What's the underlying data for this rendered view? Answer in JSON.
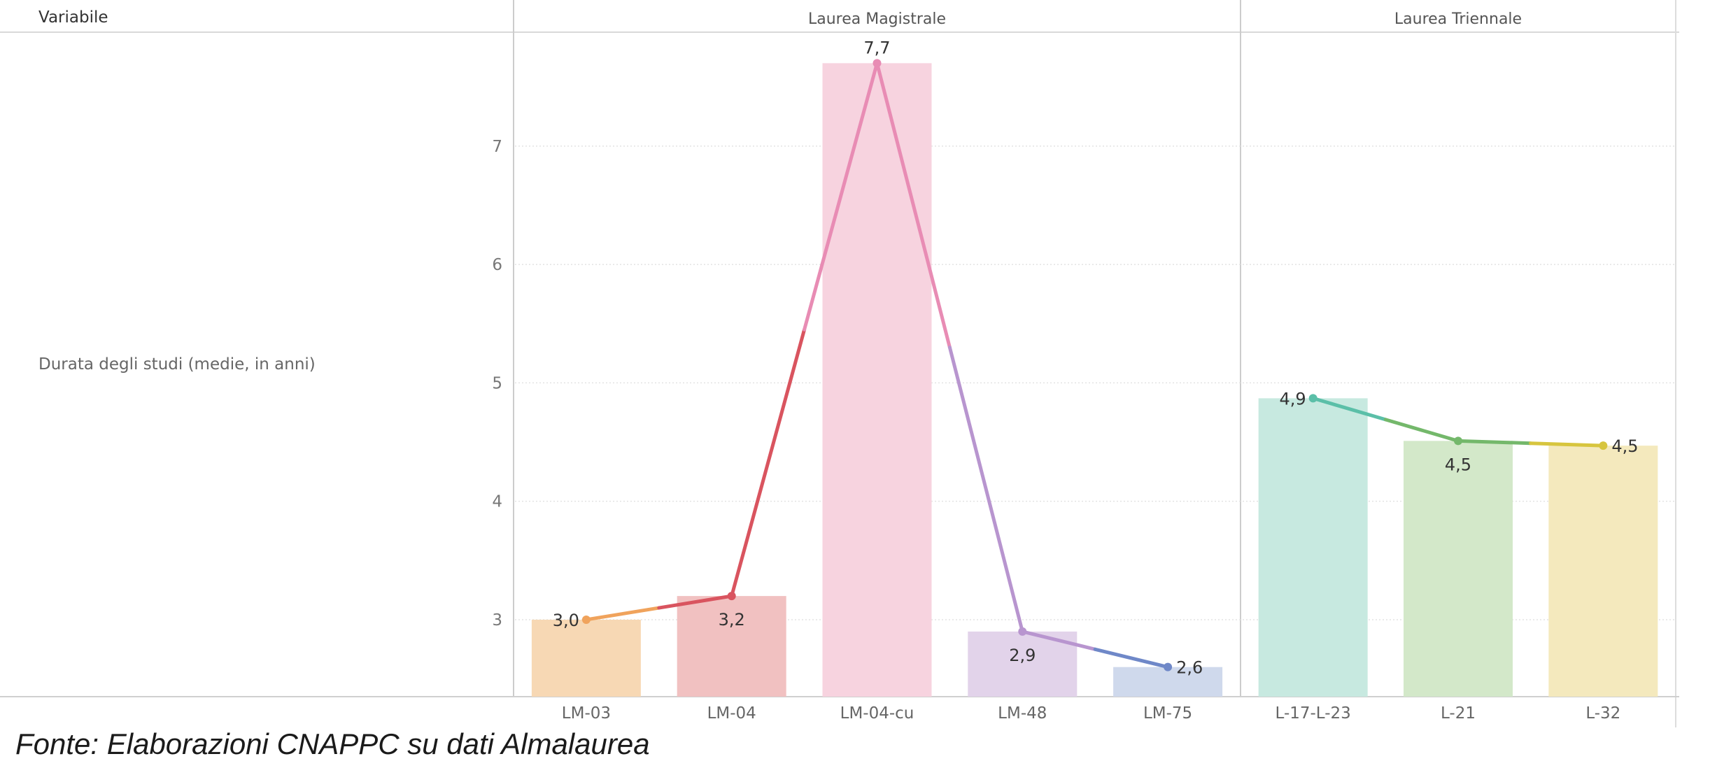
{
  "header": {
    "variable_label": "Variabile",
    "row_label": "Durata degli studi (medie, in anni)"
  },
  "source_note": "Fonte: Elaborazioni CNAPPC su dati Almalaurea",
  "chart_data": {
    "type": "bar",
    "ylim": [
      2.35,
      7.95
    ],
    "yticks": [
      3,
      4,
      5,
      6,
      7
    ],
    "grid": true,
    "panels": [
      {
        "name": "Laurea Magistrale",
        "categories": [
          "LM-03",
          "LM-04",
          "LM-04-cu",
          "LM-48",
          "LM-75"
        ],
        "values": [
          3.0,
          3.2,
          7.7,
          2.9,
          2.6
        ],
        "labels": [
          "3,0",
          "3,2",
          "7,7",
          "2,9",
          "2,6"
        ],
        "bar_colors": [
          "#f7d8b4",
          "#f1c1c1",
          "#f7d3df",
          "#e2d3ea",
          "#cfd9ec"
        ],
        "line_colors": [
          "#f0a35c",
          "#d9545f",
          "#e88cb4",
          "#b895cf",
          "#6f88c8"
        ]
      },
      {
        "name": "Laurea Triennale",
        "categories": [
          "L-17-L-23",
          "L-21",
          "L-32"
        ],
        "values": [
          4.87,
          4.51,
          4.47
        ],
        "labels": [
          "4,9",
          "4,5",
          "4,5"
        ],
        "bar_colors": [
          "#c7e9e0",
          "#d3e8c9",
          "#f4e9bd"
        ],
        "line_colors": [
          "#5bbfa8",
          "#74b86b",
          "#d7c53e"
        ]
      }
    ]
  }
}
